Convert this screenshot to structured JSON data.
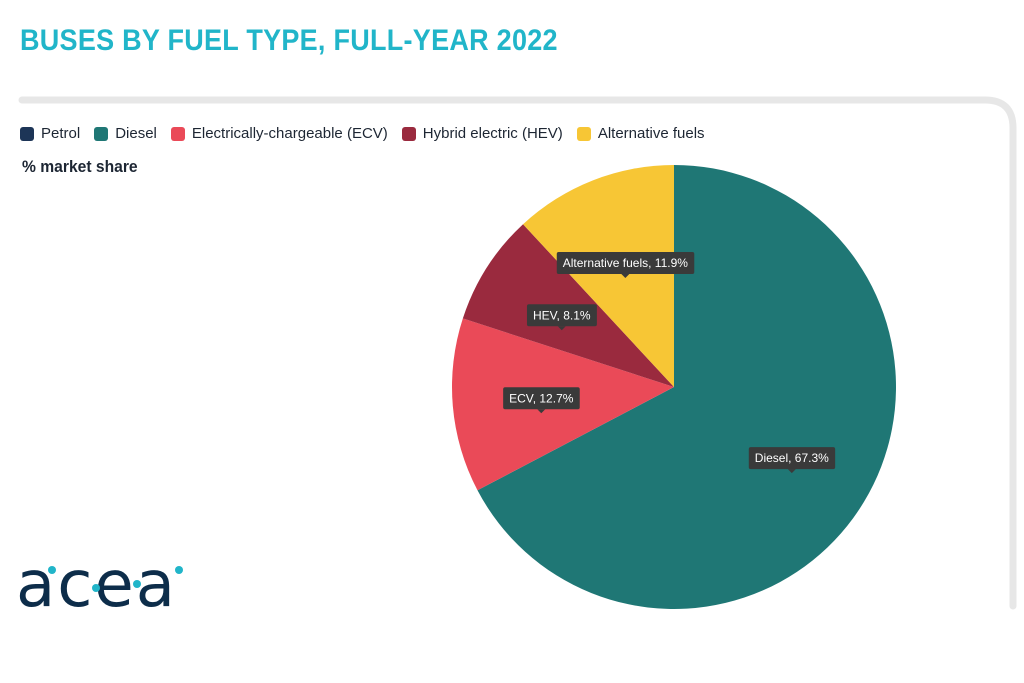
{
  "header": {
    "title": "BUSES BY FUEL TYPE, FULL-YEAR 2022"
  },
  "colors": {
    "title": "#21b5c9",
    "petrol": "#1d3557",
    "diesel": "#1f7775",
    "ecv": "#ea4a58",
    "hev": "#9a2a3e",
    "alt": "#f7c635",
    "frame": "#e7e7e7",
    "label_bg": "#3a3a3a",
    "logo_text": "#0d2d4a",
    "logo_dot": "#21b5c9"
  },
  "logo": {
    "text": "acea"
  },
  "chart_data": {
    "type": "pie",
    "title": "BUSES BY FUEL TYPE, FULL-YEAR 2022",
    "subtitle": "% market share",
    "unit": "%",
    "legend_position": "top-left",
    "legend": [
      "Petrol",
      "Diesel",
      "Electrically-chargeable (ECV)",
      "Hybrid electric (HEV)",
      "Alternative fuels"
    ],
    "slices": [
      {
        "name": "Petrol",
        "label": "",
        "value": 0.0,
        "color": "#1d3557"
      },
      {
        "name": "Diesel",
        "label": "Diesel, 67.3%",
        "value": 67.3,
        "color": "#1f7775"
      },
      {
        "name": "Electrically-chargeable (ECV)",
        "label": "ECV, 12.7%",
        "value": 12.7,
        "color": "#ea4a58"
      },
      {
        "name": "Hybrid electric (HEV)",
        "label": "HEV, 8.1%",
        "value": 8.1,
        "color": "#9a2a3e"
      },
      {
        "name": "Alternative fuels",
        "label": "Alternative fuels, 11.9%",
        "value": 11.9,
        "color": "#f7c635"
      }
    ]
  }
}
